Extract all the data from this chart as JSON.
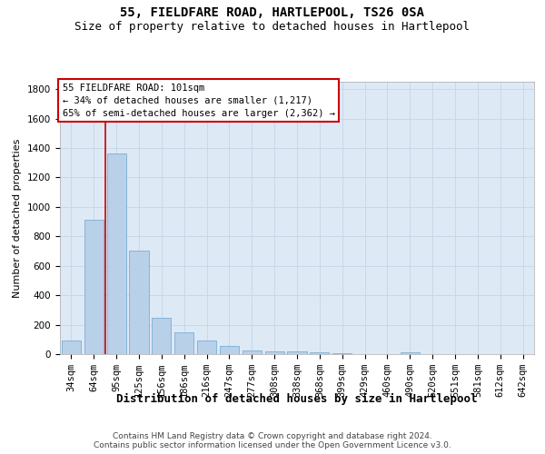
{
  "title1": "55, FIELDFARE ROAD, HARTLEPOOL, TS26 0SA",
  "title2": "Size of property relative to detached houses in Hartlepool",
  "xlabel": "Distribution of detached houses by size in Hartlepool",
  "ylabel": "Number of detached properties",
  "categories": [
    "34sqm",
    "64sqm",
    "95sqm",
    "125sqm",
    "156sqm",
    "186sqm",
    "216sqm",
    "247sqm",
    "277sqm",
    "308sqm",
    "338sqm",
    "368sqm",
    "399sqm",
    "429sqm",
    "460sqm",
    "490sqm",
    "520sqm",
    "551sqm",
    "581sqm",
    "612sqm",
    "642sqm"
  ],
  "values": [
    90,
    910,
    1360,
    700,
    245,
    145,
    90,
    55,
    25,
    20,
    20,
    10,
    5,
    0,
    0,
    10,
    0,
    0,
    0,
    0,
    0
  ],
  "bar_color": "#b8d0e8",
  "bar_edge_color": "#7aafd4",
  "grid_color": "#c8d8ea",
  "background_color": "#dde9f5",
  "vline_color": "#cc0000",
  "vline_x": 1.5,
  "annotation_lines": [
    "55 FIELDFARE ROAD: 101sqm",
    "← 34% of detached houses are smaller (1,217)",
    "65% of semi-detached houses are larger (2,362) →"
  ],
  "annotation_box_edge_color": "#cc0000",
  "ylim": [
    0,
    1850
  ],
  "yticks": [
    0,
    200,
    400,
    600,
    800,
    1000,
    1200,
    1400,
    1600,
    1800
  ],
  "footer1": "Contains HM Land Registry data © Crown copyright and database right 2024.",
  "footer2": "Contains public sector information licensed under the Open Government Licence v3.0.",
  "title1_fontsize": 10,
  "title2_fontsize": 9,
  "xlabel_fontsize": 9,
  "ylabel_fontsize": 8,
  "tick_fontsize": 7.5,
  "annotation_fontsize": 7.5,
  "footer_fontsize": 6.5
}
